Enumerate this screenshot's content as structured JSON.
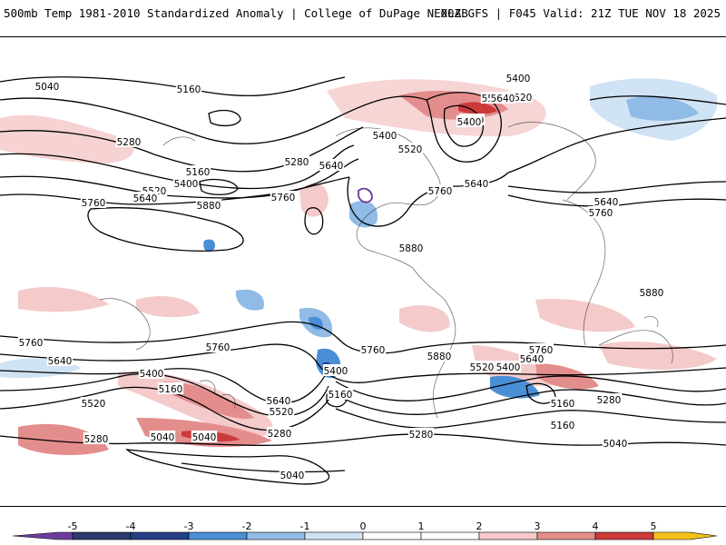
{
  "header": {
    "left_title": "500mb Temp 1981-2010 Standardized Anomaly | College of DuPage NEXLAB",
    "right_title": "00Z GFS | F045 Valid: 21Z TUE NOV 18 2025"
  },
  "contour_labels": [
    "5040",
    "5160",
    "5280",
    "5160",
    "5400",
    "5520",
    "5640",
    "5760",
    "5280",
    "5640",
    "5760",
    "5880",
    "5400",
    "5520",
    "5400",
    "5520",
    "5640",
    "5760",
    "5880",
    "5640",
    "5760",
    "5880",
    "5760",
    "5640",
    "5400",
    "5160",
    "5520",
    "5280",
    "5040",
    "5040",
    "5760",
    "5400",
    "5160",
    "5640",
    "5520",
    "5280",
    "5040",
    "5760",
    "5880",
    "5520",
    "5400",
    "5640",
    "5760",
    "5160",
    "5280",
    "5160",
    "5280",
    "5040",
    "5400",
    "5520",
    "5400",
    "5640"
  ],
  "colorbar": {
    "ticks": [
      "-5",
      "-4",
      "-3",
      "-2",
      "-1",
      "0",
      "1",
      "2",
      "3",
      "4",
      "5"
    ],
    "colors": {
      "below_min": "#6a3d9a",
      "bins": [
        "#2a3a6a",
        "#253e86",
        "#4a8fd6",
        "#8fbbe6",
        "#d0e3f4",
        "#ffffff",
        "#ffffff",
        "#f4caca",
        "#e48d8d",
        "#cc3a3a",
        "#8c0d14"
      ],
      "above_max": "#f2c21a"
    }
  }
}
